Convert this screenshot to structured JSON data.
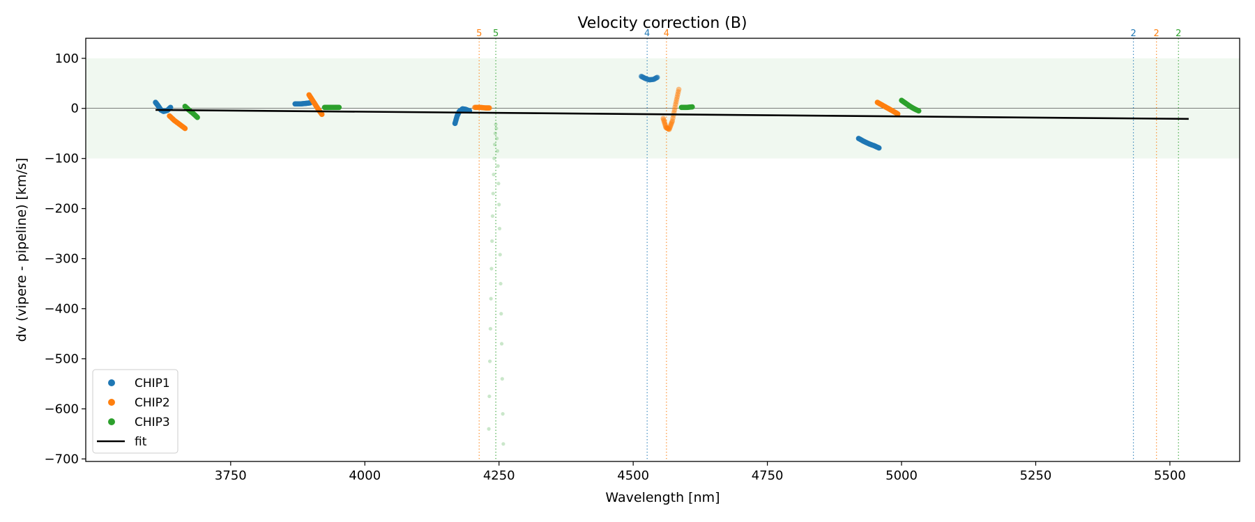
{
  "chart_data": {
    "type": "scatter",
    "title": "Velocity correction (B)",
    "xlabel": "Wavelength [nm]",
    "ylabel": "dv (vipere - pipeline) [km/s]",
    "xlim": [
      3480,
      5630
    ],
    "ylim": [
      -705,
      140
    ],
    "xticks": [
      "3750",
      "4000",
      "4250",
      "4500",
      "4750",
      "5000",
      "5250",
      "5500"
    ],
    "yticks": [
      "100",
      "0",
      "−100",
      "−200",
      "−300",
      "−400",
      "−500",
      "−600",
      "−700"
    ],
    "band": [
      -100,
      100
    ],
    "zero_line": 0,
    "colors": {
      "CHIP1": "#1f77b4",
      "CHIP2": "#ff7f0e",
      "CHIP3": "#2ca02c",
      "fit": "#000000",
      "band": "#2ca02c"
    },
    "legend": {
      "position": "lower-left",
      "entries": [
        {
          "label": "CHIP1",
          "kind": "marker",
          "color": "#1f77b4"
        },
        {
          "label": "CHIP2",
          "kind": "marker",
          "color": "#ff7f0e"
        },
        {
          "label": "CHIP3",
          "kind": "marker",
          "color": "#2ca02c"
        },
        {
          "label": "fit",
          "kind": "line",
          "color": "#000000"
        }
      ]
    },
    "fit": {
      "x": [
        3610,
        5535
      ],
      "y": [
        -3,
        -21
      ]
    },
    "vlines": [
      {
        "x": 4213,
        "label": "5",
        "series": "CHIP2"
      },
      {
        "x": 4244,
        "label": "5",
        "series": "CHIP3"
      },
      {
        "x": 4526,
        "label": "4",
        "series": "CHIP1"
      },
      {
        "x": 4562,
        "label": "4",
        "series": "CHIP2"
      },
      {
        "x": 5432,
        "label": "2",
        "series": "CHIP1"
      },
      {
        "x": 5475,
        "label": "2",
        "series": "CHIP2"
      },
      {
        "x": 5516,
        "label": "2",
        "series": "CHIP3"
      }
    ],
    "segments": [
      {
        "series": "CHIP1",
        "alpha": 1,
        "x": [
          3610,
          3615,
          3620,
          3625,
          3632,
          3638
        ],
        "y": [
          12,
          5,
          -3,
          -6,
          -4,
          2
        ]
      },
      {
        "series": "CHIP2",
        "alpha": 1,
        "x": [
          3636,
          3645,
          3655,
          3665
        ],
        "y": [
          -15,
          -24,
          -32,
          -40
        ]
      },
      {
        "series": "CHIP3",
        "alpha": 1,
        "x": [
          3665,
          3672,
          3680,
          3688
        ],
        "y": [
          4,
          -3,
          -10,
          -18
        ]
      },
      {
        "series": "CHIP1",
        "alpha": 1,
        "x": [
          3870,
          3880,
          3890,
          3898
        ],
        "y": [
          9,
          9,
          10,
          11
        ]
      },
      {
        "series": "CHIP2",
        "alpha": 1,
        "x": [
          3896,
          3902,
          3908,
          3914,
          3920
        ],
        "y": [
          27,
          17,
          7,
          -3,
          -12
        ]
      },
      {
        "series": "CHIP3",
        "alpha": 1,
        "x": [
          3925,
          3935,
          3945,
          3952
        ],
        "y": [
          2,
          2,
          2,
          2
        ]
      },
      {
        "series": "CHIP1",
        "alpha": 1,
        "x": [
          4168,
          4172,
          4176,
          4182,
          4188,
          4195
        ],
        "y": [
          -30,
          -15,
          -6,
          -1,
          -2,
          -5
        ]
      },
      {
        "series": "CHIP2",
        "alpha": 0.8,
        "x": [
          4205,
          4215,
          4225,
          4232
        ],
        "y": [
          2,
          2,
          1,
          1
        ]
      },
      {
        "series": "CHIP3",
        "alpha": 0.25,
        "x": [
          4244,
          4245,
          4243,
          4246,
          4242,
          4247,
          4241,
          4248,
          4240,
          4249,
          4239,
          4250,
          4238,
          4251,
          4237,
          4252,
          4236,
          4253,
          4235,
          4254,
          4234,
          4255,
          4233,
          4256,
          4232,
          4257,
          4231,
          4258
        ],
        "y": [
          -32,
          -40,
          -50,
          -60,
          -72,
          -85,
          -100,
          -115,
          -132,
          -150,
          -170,
          -192,
          -215,
          -240,
          -265,
          -292,
          -320,
          -350,
          -380,
          -410,
          -440,
          -470,
          -505,
          -540,
          -575,
          -610,
          -640,
          -670
        ]
      },
      {
        "series": "CHIP1",
        "alpha": 0.6,
        "x": [
          4515,
          4522,
          4530,
          4538,
          4545
        ],
        "y": [
          64,
          60,
          57,
          58,
          62
        ]
      },
      {
        "series": "CHIP2",
        "alpha": 0.5,
        "x": [
          4556,
          4561,
          4567,
          4573,
          4579,
          4585
        ],
        "y": [
          -20,
          -38,
          -42,
          -25,
          8,
          38
        ]
      },
      {
        "series": "CHIP3",
        "alpha": 1,
        "x": [
          4590,
          4600,
          4610
        ],
        "y": [
          2,
          2,
          3
        ]
      },
      {
        "series": "CHIP1",
        "alpha": 1,
        "x": [
          4920,
          4930,
          4940,
          4950,
          4958
        ],
        "y": [
          -60,
          -66,
          -71,
          -75,
          -79
        ]
      },
      {
        "series": "CHIP2",
        "alpha": 1,
        "x": [
          4955,
          4965,
          4975,
          4985,
          4993
        ],
        "y": [
          12,
          6,
          0,
          -6,
          -11
        ]
      },
      {
        "series": "CHIP3",
        "alpha": 1,
        "x": [
          5000,
          5008,
          5016,
          5024,
          5032
        ],
        "y": [
          16,
          10,
          4,
          -1,
          -5
        ]
      }
    ]
  }
}
